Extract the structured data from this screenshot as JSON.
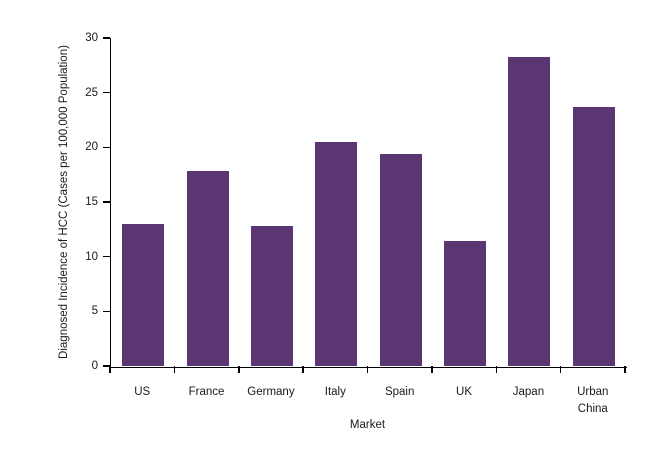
{
  "chart_data": {
    "type": "bar",
    "title": "",
    "categories": [
      "US",
      "France",
      "Germany",
      "Italy",
      "Spain",
      "UK",
      "Japan",
      "Urban China"
    ],
    "values": [
      13.0,
      17.8,
      12.8,
      20.5,
      19.4,
      11.4,
      28.3,
      23.7
    ],
    "xlabel": "Market",
    "ylabel": "Diagnosed Incidence of HCC (Cases per 100,000 Population)",
    "ylim": [
      0,
      30
    ],
    "yticks": [
      0,
      5,
      10,
      15,
      20,
      25,
      30
    ],
    "grid": false,
    "legend": false,
    "bar_color": "#5A3673",
    "axis_color": "#000000",
    "text_color": "#1A1A1A",
    "background_color": "#FFFFFF"
  }
}
